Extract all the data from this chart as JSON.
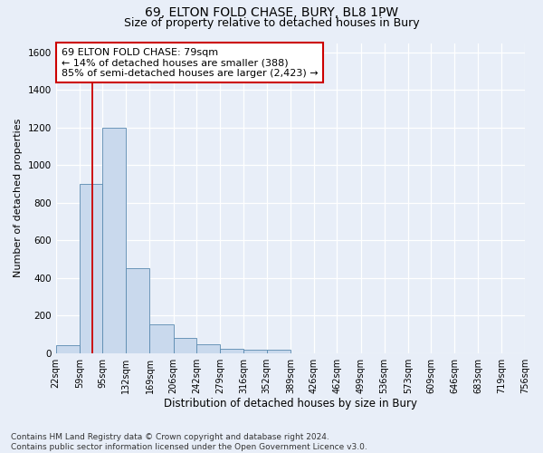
{
  "title1": "69, ELTON FOLD CHASE, BURY, BL8 1PW",
  "title2": "Size of property relative to detached houses in Bury",
  "xlabel": "Distribution of detached houses by size in Bury",
  "ylabel": "Number of detached properties",
  "footer1": "Contains HM Land Registry data © Crown copyright and database right 2024.",
  "footer2": "Contains public sector information licensed under the Open Government Licence v3.0.",
  "annotation_line1": "69 ELTON FOLD CHASE: 79sqm",
  "annotation_line2": "← 14% of detached houses are smaller (388)",
  "annotation_line3": "85% of semi-detached houses are larger (2,423) →",
  "bin_edges": [
    22,
    59,
    95,
    132,
    169,
    206,
    242,
    279,
    316,
    352,
    389,
    426,
    462,
    499,
    536,
    573,
    609,
    646,
    683,
    719,
    756
  ],
  "bin_counts": [
    40,
    900,
    1200,
    450,
    155,
    80,
    45,
    25,
    20,
    20,
    0,
    0,
    0,
    0,
    0,
    0,
    0,
    0,
    0,
    0
  ],
  "bar_color": "#c9d9ed",
  "bar_edge_color": "#5a8ab0",
  "vline_color": "#cc0000",
  "vline_x": 79,
  "box_color": "#cc0000",
  "ylim": [
    0,
    1650
  ],
  "yticks": [
    0,
    200,
    400,
    600,
    800,
    1000,
    1200,
    1400,
    1600
  ],
  "bg_color": "#e8eef8",
  "plot_bg_color": "#e8eef8",
  "grid_color": "#ffffff",
  "title1_fontsize": 10,
  "title2_fontsize": 9,
  "xlabel_fontsize": 8.5,
  "ylabel_fontsize": 8,
  "footer_fontsize": 6.5,
  "annot_fontsize": 8,
  "tick_fontsize": 7
}
